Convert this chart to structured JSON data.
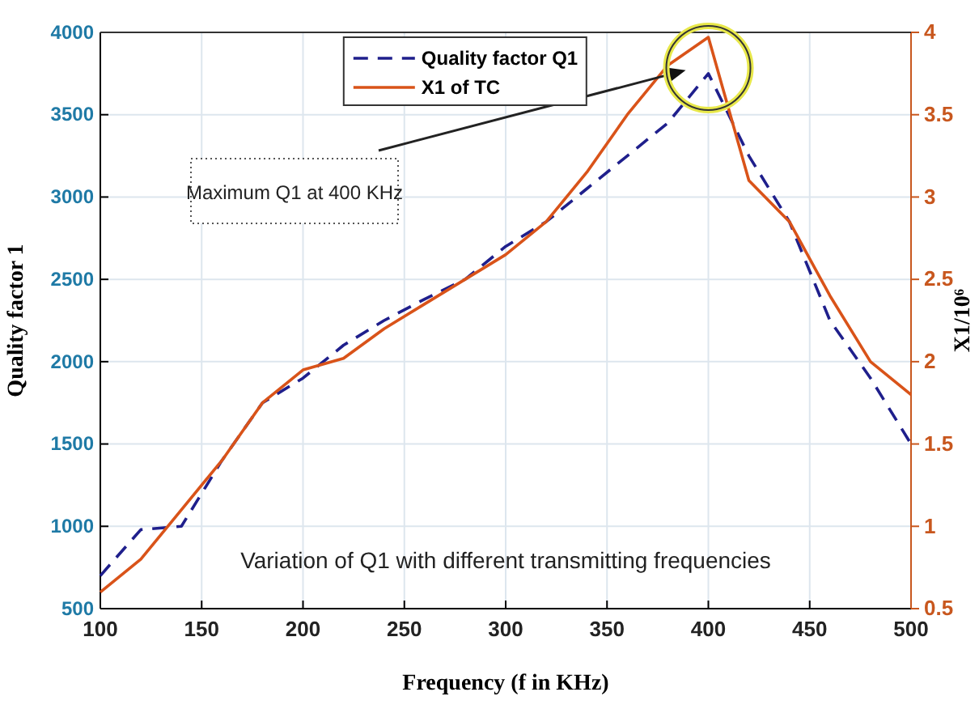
{
  "chart_data": {
    "type": "line",
    "xlabel": "Frequency (f in KHz)",
    "ylabel": "Quality factor 1",
    "y2label": "X1/10⁶",
    "x": [
      100,
      120,
      140,
      160,
      180,
      200,
      220,
      240,
      260,
      280,
      300,
      320,
      340,
      360,
      380,
      400,
      420,
      440,
      460,
      480,
      500
    ],
    "series": [
      {
        "name": "Quality factor Q1",
        "color": "#1f1f8c",
        "line_style": "dashed",
        "values": [
          700,
          980,
          1000,
          1400,
          1750,
          1900,
          2100,
          2250,
          2380,
          2500,
          2700,
          2850,
          3050,
          3250,
          3450,
          3750,
          3250,
          2850,
          2250,
          1900,
          1500
        ]
      },
      {
        "name": "X1 of TC",
        "color": "#d95319",
        "line_style": "solid",
        "axis": "y2",
        "values": [
          0.6,
          0.8,
          1.1,
          1.4,
          1.75,
          1.95,
          2.02,
          2.2,
          2.35,
          2.5,
          2.65,
          2.85,
          3.15,
          3.5,
          3.8,
          3.97,
          3.1,
          2.85,
          2.4,
          2.0,
          1.8
        ]
      }
    ],
    "xlim": [
      100,
      500
    ],
    "xticks": [
      100,
      150,
      200,
      250,
      300,
      350,
      400,
      450,
      500
    ],
    "ylim": [
      500,
      4000
    ],
    "yticks": [
      500,
      1000,
      1500,
      2000,
      2500,
      3000,
      3500,
      4000
    ],
    "y2lim": [
      0.5,
      4
    ],
    "y2ticks": [
      {
        "value": 0.5,
        "label": "0.5"
      },
      {
        "value": 1,
        "label": "1"
      },
      {
        "value": 1.5,
        "label": "1.5"
      },
      {
        "value": 2,
        "label": "2"
      },
      {
        "value": 2.5,
        "label": "2.5"
      },
      {
        "value": 3,
        "label": "3"
      },
      {
        "value": 3.5,
        "label": "3.5"
      },
      {
        "value": 4,
        "label": "4"
      }
    ],
    "grid": true,
    "legend": "top",
    "marker": "none",
    "annotations": [
      "Maximum Q1 at 400 KHz",
      "Variation of Q1 with different transmitting frequencies"
    ]
  }
}
